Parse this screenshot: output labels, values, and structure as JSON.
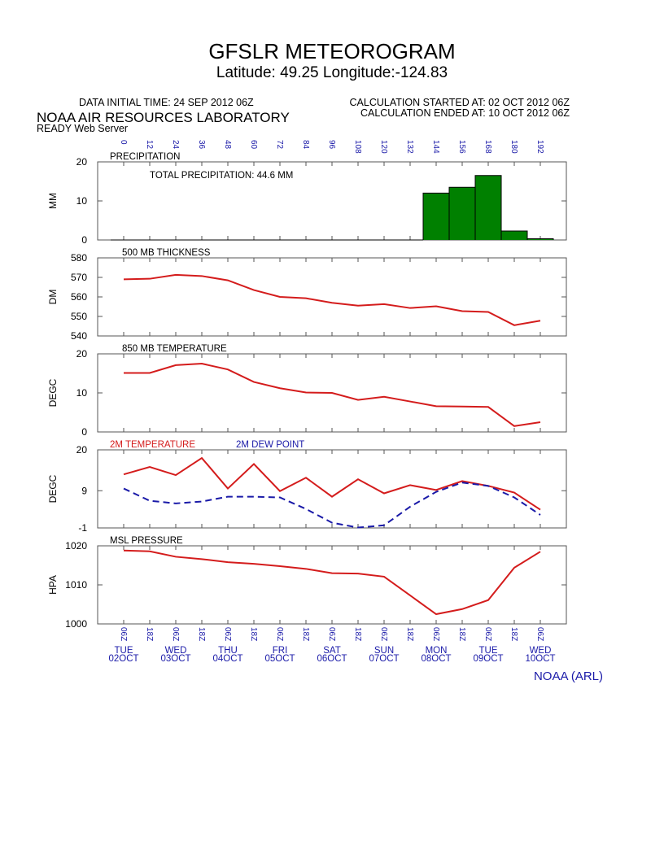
{
  "header": {
    "title": "GFSLR METEOROGRAM",
    "subtitle": "Latitude: 49.25 Longitude:-124.83",
    "initial_time": "DATA INITIAL TIME: 24 SEP 2012 06Z",
    "calc_started": "CALCULATION STARTED AT: 02 OCT 2012 06Z",
    "calc_ended": "CALCULATION ENDED AT: 10 OCT 2012 06Z",
    "lab": "NOAA AIR RESOURCES LABORATORY",
    "server": "READY Web Server",
    "footer": "NOAA (ARL)"
  },
  "time_axis": {
    "xlim": [
      -12,
      204
    ],
    "xticks": [
      0,
      12,
      24,
      36,
      48,
      60,
      72,
      84,
      96,
      108,
      120,
      132,
      144,
      156,
      168,
      180,
      192
    ],
    "bottom_labels": [
      "06Z",
      "18Z",
      "06Z",
      "18Z",
      "06Z",
      "18Z",
      "06Z",
      "18Z",
      "06Z",
      "18Z",
      "06Z",
      "18Z",
      "06Z",
      "18Z",
      "06Z",
      "18Z",
      "06Z"
    ],
    "days": [
      {
        "value": 0,
        "day": "TUE",
        "date": "02OCT"
      },
      {
        "value": 24,
        "day": "WED",
        "date": "03OCT"
      },
      {
        "value": 48,
        "day": "THU",
        "date": "04OCT"
      },
      {
        "value": 72,
        "day": "FRI",
        "date": "05OCT"
      },
      {
        "value": 96,
        "day": "SAT",
        "date": "06OCT"
      },
      {
        "value": 120,
        "day": "SUN",
        "date": "07OCT"
      },
      {
        "value": 144,
        "day": "MON",
        "date": "08OCT"
      },
      {
        "value": 168,
        "day": "TUE",
        "date": "09OCT"
      },
      {
        "value": 192,
        "day": "WED",
        "date": "10OCT"
      }
    ]
  },
  "chart_data": [
    {
      "type": "bar",
      "title": "PRECIPITATION",
      "ylabel": "MM",
      "annotation": "TOTAL PRECIPITATION:  44.6 MM",
      "x": [
        0,
        12,
        24,
        36,
        48,
        60,
        72,
        84,
        96,
        108,
        120,
        132,
        144,
        156,
        168,
        180,
        192
      ],
      "values": [
        0,
        0,
        0,
        0,
        0,
        0,
        0,
        0,
        0,
        0,
        0,
        0,
        12,
        13.5,
        16.5,
        2.3,
        0.3
      ],
      "color": "#008000",
      "ylim": [
        0,
        20
      ],
      "yticks": [
        0,
        10,
        20
      ]
    },
    {
      "type": "line",
      "title": "500 MB  THICKNESS",
      "ylabel": "DM",
      "x": [
        0,
        12,
        24,
        36,
        48,
        60,
        72,
        84,
        96,
        108,
        120,
        132,
        144,
        156,
        168,
        180,
        192
      ],
      "series": [
        {
          "color": "#d41c1c",
          "values": [
            569,
            569.3,
            571.3,
            570.7,
            568.5,
            563.5,
            560,
            559.3,
            557,
            555.5,
            556.3,
            554.3,
            555.2,
            552.7,
            552.3,
            545.5,
            547.8
          ]
        }
      ],
      "ylim": [
        540,
        580
      ],
      "yticks": [
        540,
        550,
        560,
        570,
        580
      ]
    },
    {
      "type": "line",
      "title": "850 MB  TEMPERATURE",
      "ylabel": "DEGC",
      "x": [
        0,
        12,
        24,
        36,
        48,
        60,
        72,
        84,
        96,
        108,
        120,
        132,
        144,
        156,
        168,
        180,
        192
      ],
      "series": [
        {
          "color": "#d41c1c",
          "values": [
            15.1,
            15.1,
            17.1,
            17.5,
            16,
            12.8,
            11.2,
            10.1,
            10,
            8.2,
            9,
            7.8,
            6.6,
            6.5,
            6.4,
            1.5,
            2.5
          ]
        }
      ],
      "ylim": [
        0,
        20
      ],
      "yticks": [
        0,
        10,
        20
      ]
    },
    {
      "type": "line",
      "ylabel": "DEGC",
      "x": [
        0,
        12,
        24,
        36,
        48,
        60,
        72,
        84,
        96,
        108,
        120,
        132,
        144,
        156,
        168,
        180,
        192
      ],
      "series": [
        {
          "name": "2M TEMPERATURE",
          "color": "#d41c1c",
          "values": [
            13.4,
            15.4,
            13.2,
            17.8,
            9.6,
            16.2,
            8.9,
            12.5,
            7.4,
            12.1,
            8.3,
            10.5,
            9.2,
            11.6,
            10.3,
            8.5,
            3.9
          ]
        },
        {
          "name": "2M   DEW POINT",
          "color": "#1a1aa8",
          "dashed": true,
          "values": [
            9.6,
            6.3,
            5.6,
            6.1,
            7.4,
            7.4,
            7.2,
            4.1,
            0.4,
            -0.9,
            -0.3,
            4.7,
            8.7,
            11.2,
            10.3,
            7.2,
            2.5
          ]
        }
      ],
      "ylim": [
        -1,
        20
      ],
      "yticks": [
        -1,
        9,
        20
      ]
    },
    {
      "type": "line",
      "title": "MSL PRESSURE",
      "ylabel": "HPA",
      "x": [
        0,
        12,
        24,
        36,
        48,
        60,
        72,
        84,
        96,
        108,
        120,
        132,
        144,
        156,
        168,
        180,
        192
      ],
      "series": [
        {
          "color": "#d41c1c",
          "values": [
            1018.8,
            1018.6,
            1017.2,
            1016.6,
            1015.8,
            1015.4,
            1014.8,
            1014.1,
            1013,
            1012.9,
            1012.1,
            1007.3,
            1002.5,
            1003.8,
            1006.1,
            1014.4,
            1018.5
          ]
        }
      ],
      "ylim": [
        1000,
        1020
      ],
      "yticks": [
        1000,
        1010,
        1020
      ]
    }
  ]
}
